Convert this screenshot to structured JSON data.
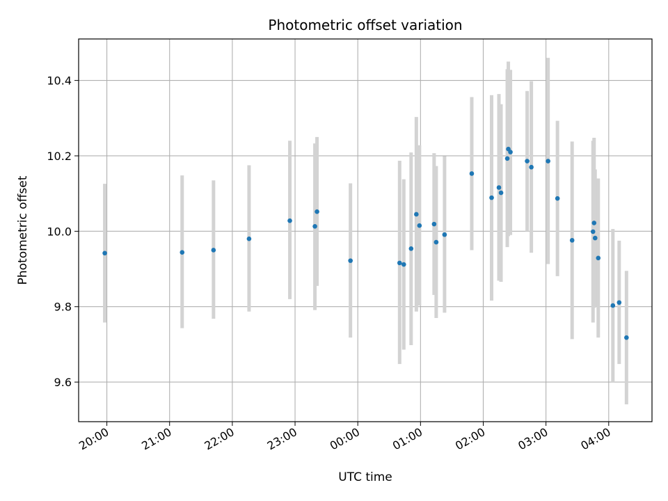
{
  "chart_data": {
    "type": "scatter",
    "title": "Photometric offset variation",
    "xlabel": "UTC time",
    "ylabel": "Photometric offset",
    "x_ticks": [
      "20:00",
      "21:00",
      "22:00",
      "23:00",
      "00:00",
      "01:00",
      "02:00",
      "03:00",
      "04:00"
    ],
    "y_ticks": [
      "9.6",
      "9.8",
      "10.0",
      "10.2",
      "10.4"
    ],
    "y_tick_values": [
      9.6,
      9.8,
      10.0,
      10.2,
      10.4
    ],
    "xlim_hours_since_first_tick": [
      -0.45,
      8.69
    ],
    "ylim": [
      9.495,
      10.51
    ],
    "grid": true,
    "point_color": "#1f77b4",
    "errorbar_color": "#d3d3d3",
    "points": [
      {
        "t": "19:58",
        "y": 9.942,
        "lo": 9.758,
        "hi": 10.126
      },
      {
        "t": "21:12",
        "y": 9.944,
        "lo": 9.743,
        "hi": 10.148
      },
      {
        "t": "21:42",
        "y": 9.95,
        "lo": 9.768,
        "hi": 10.135
      },
      {
        "t": "22:16",
        "y": 9.98,
        "lo": 9.787,
        "hi": 10.175
      },
      {
        "t": "22:55",
        "y": 10.028,
        "lo": 9.82,
        "hi": 10.24
      },
      {
        "t": "23:19",
        "y": 10.013,
        "lo": 9.791,
        "hi": 10.233
      },
      {
        "t": "23:21",
        "y": 10.052,
        "lo": 9.855,
        "hi": 10.25
      },
      {
        "t": "23:53",
        "y": 9.922,
        "lo": 9.718,
        "hi": 10.127
      },
      {
        "t": "00:40",
        "y": 9.916,
        "lo": 9.648,
        "hi": 10.187
      },
      {
        "t": "00:44",
        "y": 9.912,
        "lo": 9.686,
        "hi": 10.138
      },
      {
        "t": "00:51",
        "y": 9.954,
        "lo": 9.698,
        "hi": 10.209
      },
      {
        "t": "00:56",
        "y": 10.045,
        "lo": 9.787,
        "hi": 10.303
      },
      {
        "t": "00:59",
        "y": 10.015,
        "lo": 9.803,
        "hi": 10.228
      },
      {
        "t": "01:13",
        "y": 10.019,
        "lo": 9.831,
        "hi": 10.207
      },
      {
        "t": "01:15",
        "y": 9.971,
        "lo": 9.77,
        "hi": 10.173
      },
      {
        "t": "01:23",
        "y": 9.991,
        "lo": 9.784,
        "hi": 10.199
      },
      {
        "t": "01:49",
        "y": 10.153,
        "lo": 9.95,
        "hi": 10.356
      },
      {
        "t": "02:08",
        "y": 10.089,
        "lo": 9.816,
        "hi": 10.361
      },
      {
        "t": "02:15",
        "y": 10.116,
        "lo": 9.869,
        "hi": 10.364
      },
      {
        "t": "02:17",
        "y": 10.102,
        "lo": 9.866,
        "hi": 10.337
      },
      {
        "t": "02:23",
        "y": 10.193,
        "lo": 9.958,
        "hi": 10.43
      },
      {
        "t": "02:24",
        "y": 10.218,
        "lo": 9.987,
        "hi": 10.45
      },
      {
        "t": "02:26",
        "y": 10.21,
        "lo": 9.99,
        "hi": 10.428
      },
      {
        "t": "02:42",
        "y": 10.186,
        "lo": 10.0,
        "hi": 10.372
      },
      {
        "t": "02:46",
        "y": 10.17,
        "lo": 9.943,
        "hi": 10.398
      },
      {
        "t": "03:02",
        "y": 10.186,
        "lo": 9.913,
        "hi": 10.46
      },
      {
        "t": "03:11",
        "y": 10.087,
        "lo": 9.881,
        "hi": 10.293
      },
      {
        "t": "03:25",
        "y": 9.976,
        "lo": 9.714,
        "hi": 10.238
      },
      {
        "t": "03:45",
        "y": 9.999,
        "lo": 9.758,
        "hi": 10.24
      },
      {
        "t": "03:46",
        "y": 10.022,
        "lo": 9.797,
        "hi": 10.248
      },
      {
        "t": "03:47",
        "y": 9.982,
        "lo": 9.8,
        "hi": 10.164
      },
      {
        "t": "03:50",
        "y": 9.929,
        "lo": 9.718,
        "hi": 10.14
      },
      {
        "t": "04:04",
        "y": 9.803,
        "lo": 9.6,
        "hi": 10.006
      },
      {
        "t": "04:10",
        "y": 9.811,
        "lo": 9.648,
        "hi": 9.975
      },
      {
        "t": "04:17",
        "y": 9.718,
        "lo": 9.541,
        "hi": 9.895
      }
    ]
  }
}
